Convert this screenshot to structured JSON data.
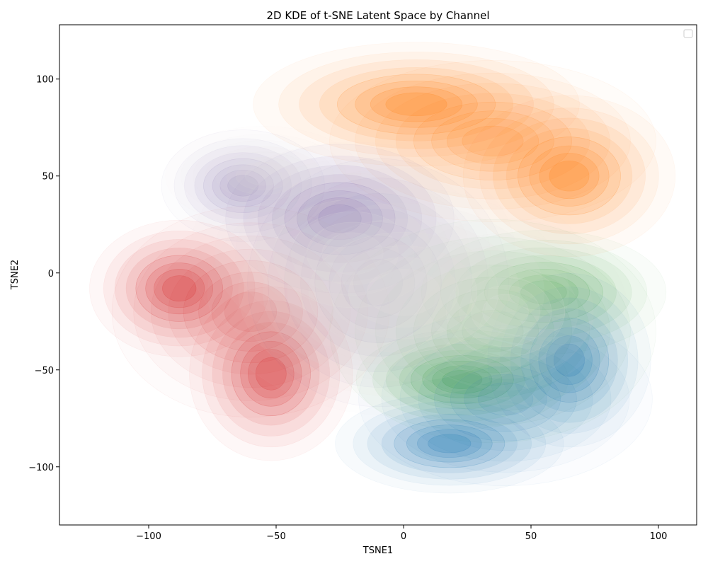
{
  "chart_data": {
    "type": "kde",
    "title": "2D KDE of t-SNE Latent Space by Channel",
    "xlabel": "TSNE1",
    "ylabel": "TSNE2",
    "xlim": [
      -135,
      115
    ],
    "ylim": [
      -130,
      128
    ],
    "xticks": [
      -100,
      -50,
      0,
      50,
      100
    ],
    "yticks": [
      -100,
      -50,
      0,
      50,
      100
    ],
    "legend": {
      "location": "upper right",
      "entries": []
    },
    "grid": false,
    "series": [
      {
        "color": "#ff7f0e",
        "modes": [
          {
            "x": 5,
            "y": 87,
            "sx": 20,
            "sy": 10,
            "w": 1.0
          },
          {
            "x": 65,
            "y": 50,
            "sx": 13,
            "sy": 13,
            "w": 1.0
          },
          {
            "x": 35,
            "y": 68,
            "sx": 20,
            "sy": 13,
            "w": 0.7
          }
        ]
      },
      {
        "color": "#d62728",
        "modes": [
          {
            "x": -88,
            "y": -8,
            "sx": 11,
            "sy": 11,
            "w": 1.0
          },
          {
            "x": -52,
            "y": -52,
            "sx": 10,
            "sy": 14,
            "w": 1.0
          },
          {
            "x": -60,
            "y": -20,
            "sx": 17,
            "sy": 17,
            "w": 0.5
          }
        ]
      },
      {
        "color": "#6a51a3",
        "modes": [
          {
            "x": -25,
            "y": 28,
            "sx": 14,
            "sy": 12,
            "w": 1.0
          },
          {
            "x": -63,
            "y": 45,
            "sx": 10,
            "sy": 9,
            "w": 0.6
          },
          {
            "x": -10,
            "y": -5,
            "sx": 16,
            "sy": 20,
            "w": 0.5
          }
        ]
      },
      {
        "color": "#2ca02c",
        "modes": [
          {
            "x": 23,
            "y": -55,
            "sx": 13,
            "sy": 8,
            "w": 1.0
          },
          {
            "x": 55,
            "y": -10,
            "sx": 15,
            "sy": 10,
            "w": 0.8
          },
          {
            "x": 35,
            "y": -30,
            "sx": 20,
            "sy": 18,
            "w": 0.5
          }
        ]
      },
      {
        "color": "#1f77b4",
        "modes": [
          {
            "x": 65,
            "y": -45,
            "sx": 10,
            "sy": 14,
            "w": 1.0
          },
          {
            "x": 18,
            "y": -88,
            "sx": 14,
            "sy": 8,
            "w": 1.0
          },
          {
            "x": 40,
            "y": -65,
            "sx": 18,
            "sy": 14,
            "w": 0.5
          }
        ]
      },
      {
        "color": "#e6e4e0",
        "modes": [
          {
            "x": 0,
            "y": -10,
            "sx": 24,
            "sy": 20,
            "w": 1.0
          },
          {
            "x": -20,
            "y": 10,
            "sx": 20,
            "sy": 18,
            "w": 0.8
          },
          {
            "x": 40,
            "y": -20,
            "sx": 15,
            "sy": 15,
            "w": 0.8
          },
          {
            "x": -55,
            "y": 50,
            "sx": 12,
            "sy": 8,
            "w": 0.6
          }
        ]
      }
    ]
  }
}
